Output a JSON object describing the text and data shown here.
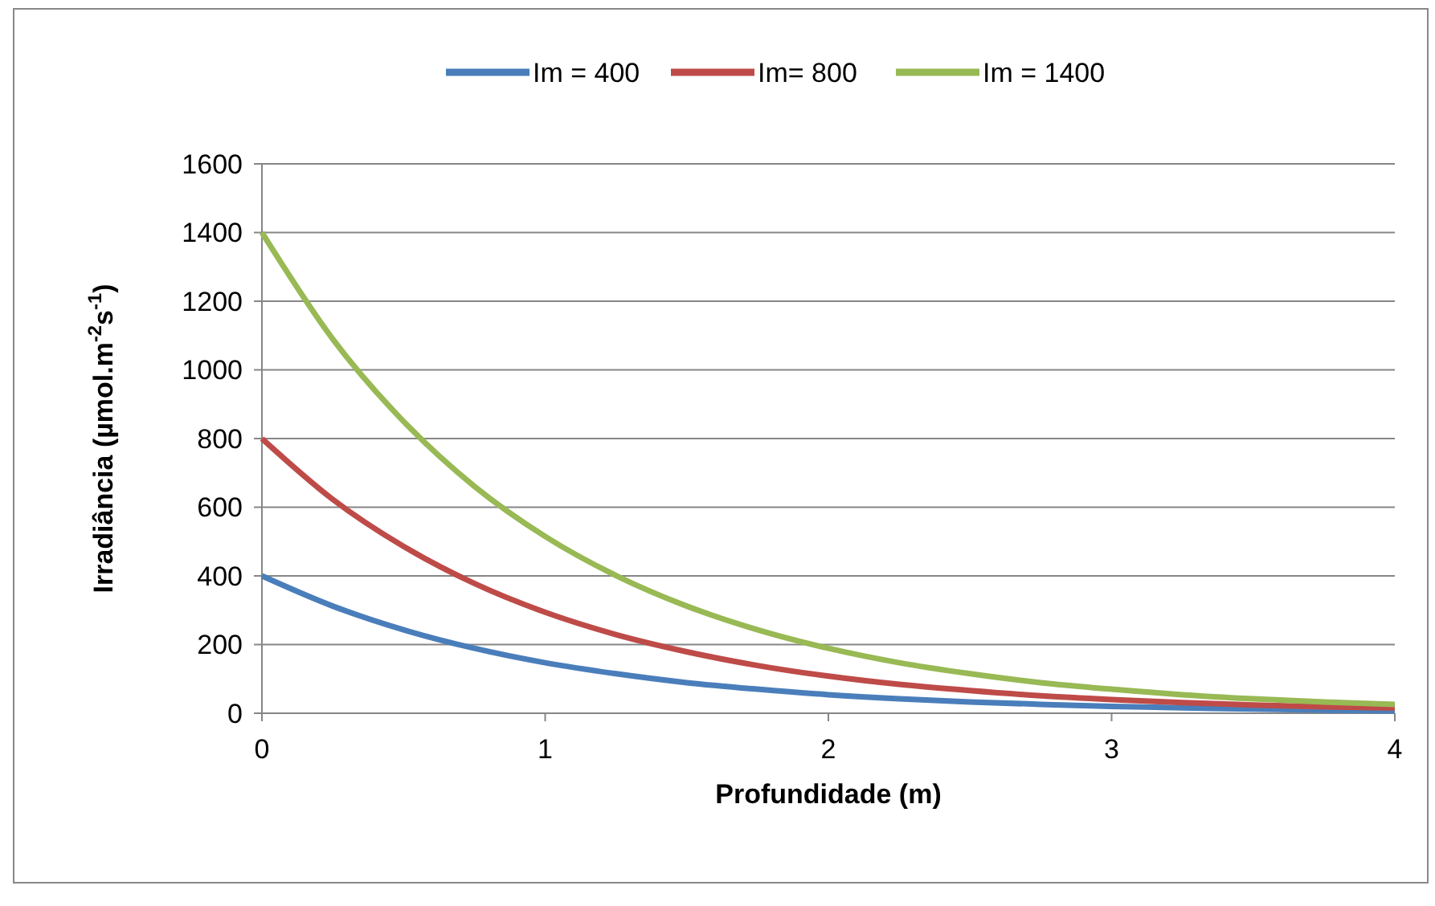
{
  "chart_data": {
    "type": "line",
    "xlabel": "Profundidade (m)",
    "ylabel": "Irradiância (µmol.m$^{-2}$s$^{-1}$)",
    "x": [
      0,
      0.25,
      0.5,
      0.75,
      1,
      1.25,
      1.5,
      1.75,
      2,
      2.25,
      2.5,
      2.75,
      3,
      3.25,
      3.5,
      3.75,
      4
    ],
    "series": [
      {
        "name": "Im = 400",
        "color": "#4a7ebb",
        "values": [
          400,
          312,
          243,
          189,
          147,
          115,
          89,
          70,
          54,
          42,
          33,
          26,
          20,
          16,
          12,
          9,
          7
        ]
      },
      {
        "name": "Im= 800",
        "color": "#be4b48",
        "values": [
          800,
          623,
          486,
          378,
          294,
          229,
          179,
          139,
          108,
          84,
          66,
          51,
          40,
          31,
          24,
          19,
          15
        ]
      },
      {
        "name": "Im = 1400",
        "color": "#98b954",
        "values": [
          1400,
          1090,
          850,
          661,
          515,
          401,
          312,
          243,
          189,
          147,
          115,
          89,
          70,
          54,
          42,
          33,
          26
        ]
      }
    ],
    "xlim": [
      0,
      4
    ],
    "xticks": [
      0,
      1,
      2,
      3,
      4
    ],
    "ylim": [
      0,
      1600
    ],
    "yticks": [
      0,
      200,
      400,
      600,
      800,
      1000,
      1200,
      1400,
      1600
    ],
    "grid": "y",
    "legend": "top",
    "marker": "none",
    "line_style": "solid"
  }
}
